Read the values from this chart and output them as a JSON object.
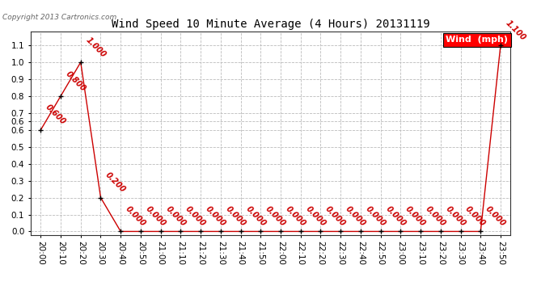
{
  "title": "Wind Speed 10 Minute Average (4 Hours) 20131119",
  "copyright": "Copyright 2013 Cartronics.com",
  "legend_label": "Wind  (mph)",
  "line_color": "#cc0000",
  "marker_color": "#000000",
  "background_color": "#ffffff",
  "grid_color": "#bbbbbb",
  "times": [
    "20:00",
    "20:10",
    "20:20",
    "20:30",
    "20:40",
    "20:50",
    "21:00",
    "21:10",
    "21:20",
    "21:30",
    "21:40",
    "21:50",
    "22:00",
    "22:10",
    "22:20",
    "22:30",
    "22:40",
    "22:50",
    "23:00",
    "23:10",
    "23:20",
    "23:30",
    "23:40",
    "23:50"
  ],
  "values": [
    0.6,
    0.8,
    1.0,
    0.2,
    0.0,
    0.0,
    0.0,
    0.0,
    0.0,
    0.0,
    0.0,
    0.0,
    0.0,
    0.0,
    0.0,
    0.0,
    0.0,
    0.0,
    0.0,
    0.0,
    0.0,
    0.0,
    0.0,
    1.1
  ],
  "ytick_vals": [
    0.0,
    0.1,
    0.2,
    0.3,
    0.4,
    0.5,
    0.6,
    0.6,
    0.7,
    0.8,
    0.9,
    1.0,
    1.1
  ],
  "ytick_labels": [
    "0.0",
    "0.1",
    "0.2",
    "0.3",
    "0.4",
    "0.5",
    "0.6",
    "0.6",
    "0.7",
    "0.8",
    "0.9",
    "1.0",
    "1.1"
  ],
  "annotation_rotation": 315,
  "title_fontsize": 10,
  "label_fontsize": 7,
  "tick_fontsize": 7.5
}
